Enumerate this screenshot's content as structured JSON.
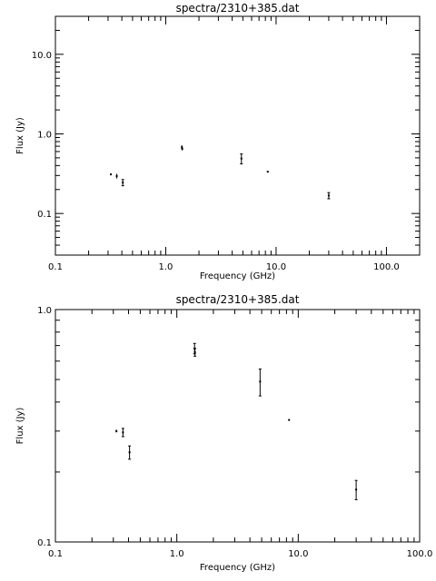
{
  "chart_data": [
    {
      "type": "scatter",
      "title": "spectra/2310+385.dat",
      "xlabel": "Frequency (GHz)",
      "ylabel": "Flux (Jy)",
      "xscale": "log",
      "yscale": "log",
      "xlim": [
        0.1,
        200
      ],
      "ylim": [
        0.03,
        30
      ],
      "xticks": [
        0.1,
        1,
        10,
        100
      ],
      "xtick_labels": [
        "0.1",
        "1.0",
        "10.0",
        "100.0"
      ],
      "yticks": [
        0.1,
        1,
        10
      ],
      "ytick_labels": [
        "0.1",
        "1.0",
        "10.0"
      ],
      "points": [
        {
          "x": 0.318,
          "y": 0.31,
          "yerr": 0.008
        },
        {
          "x": 0.36,
          "y": 0.295,
          "yerr": 0.02
        },
        {
          "x": 0.408,
          "y": 0.245,
          "yerr": 0.022
        },
        {
          "x": 1.4,
          "y": 0.68,
          "yerr": 0.04
        },
        {
          "x": 1.41,
          "y": 0.65,
          "yerr": 0.03
        },
        {
          "x": 4.85,
          "y": 0.49,
          "yerr": 0.07
        },
        {
          "x": 8.4,
          "y": 0.335,
          "yerr": 0.004
        },
        {
          "x": 30.0,
          "y": 0.168,
          "yerr": 0.015
        }
      ]
    },
    {
      "type": "scatter",
      "title": "spectra/2310+385.dat",
      "xlabel": "Frequency (GHz)",
      "ylabel": "Flux (Jy)",
      "xscale": "log",
      "yscale": "log",
      "xlim": [
        0.1,
        100
      ],
      "ylim": [
        0.1,
        1.0
      ],
      "xticks": [
        0.1,
        1,
        10,
        100
      ],
      "xtick_labels": [
        "0.1",
        "1.0",
        "10.0",
        "100.0"
      ],
      "yticks": [
        0.1,
        1
      ],
      "ytick_labels": [
        "0.1",
        "1.0"
      ],
      "points": [
        {
          "x": 0.318,
          "y": 0.3,
          "yerr": 0.004
        },
        {
          "x": 0.36,
          "y": 0.296,
          "yerr": 0.012
        },
        {
          "x": 0.408,
          "y": 0.243,
          "yerr": 0.016
        },
        {
          "x": 1.4,
          "y": 0.68,
          "yerr": 0.035
        },
        {
          "x": 1.41,
          "y": 0.655,
          "yerr": 0.025
        },
        {
          "x": 4.85,
          "y": 0.49,
          "yerr": 0.065
        },
        {
          "x": 8.4,
          "y": 0.335,
          "yerr": 0.002
        },
        {
          "x": 30.0,
          "y": 0.168,
          "yerr": 0.016
        }
      ]
    }
  ]
}
